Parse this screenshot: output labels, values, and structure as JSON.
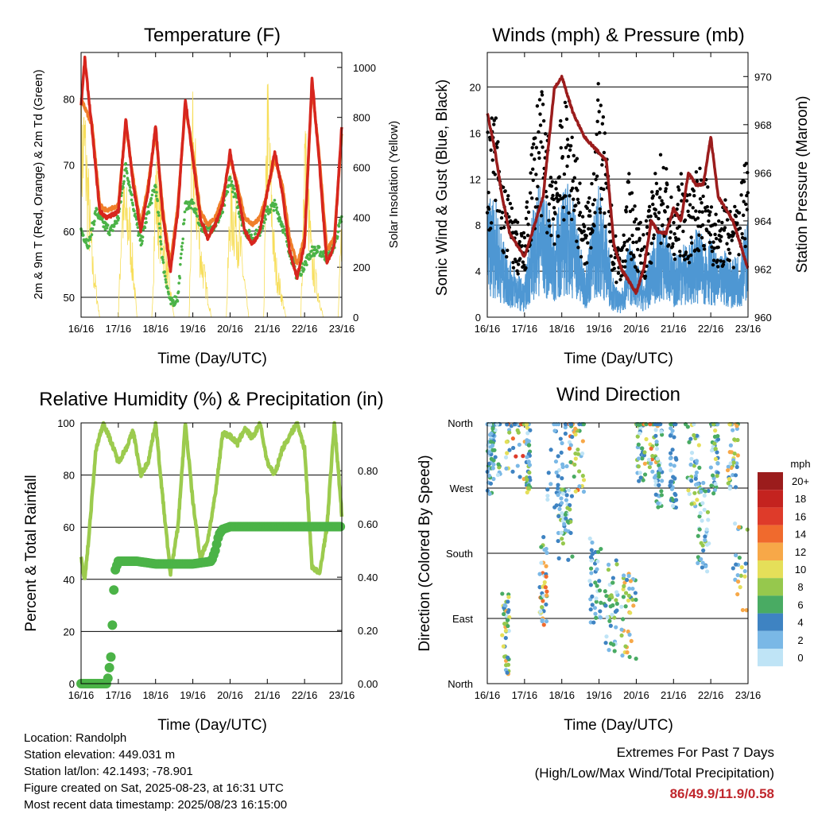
{
  "charts_text": {
    "temperature": {
      "title": "Temperature (F)",
      "ylabel_left": "2m & 9m T (Red, Orange) & 2m Td (Green)",
      "ylabel_right": "Solar Insolation (Yellow)",
      "xlabel": "Time (Day/UTC)"
    },
    "winds": {
      "title": "Winds (mph) & Pressure (mb)",
      "ylabel_left": "Sonic Wind & Gust (Blue, Black)",
      "ylabel_right": "Station Pressure (Maroon)",
      "xlabel": "Time (Day/UTC)"
    },
    "humidity": {
      "title": "Relative Humidity (%) & Precipitation (in)",
      "ylabel_left": "Percent & Total Rainfall",
      "xlabel": "Time (Day/UTC)"
    },
    "direction": {
      "title": "Wind Direction",
      "ylabel_left": "Direction (Colored By Speed)",
      "xlabel": "Time (Day/UTC)",
      "legend_title": "mph"
    }
  },
  "info": {
    "location": "Location: Randolph",
    "elevation": "Station elevation: 449.031 m",
    "latlon": "Station lat/lon: 42.1493; -78.901",
    "created": "Figure created on Sat, 2025-08-23, at 16:31 UTC",
    "recent": "Most recent data timestamp: 2025/08/23 16:15:00"
  },
  "extremes": {
    "line1": "Extremes For Past 7 Days",
    "line2": "(High/Low/Max Wind/Total Precipitation)",
    "values": "86/49.9/11.9/0.58"
  },
  "colors": {
    "temp_2m": "#d7261e",
    "temp_9m": "#f07f2a",
    "dewpoint": "#4bb347",
    "solar": "#f7de5a",
    "wind_sonic": "#4e97d3",
    "gust": "#000000",
    "pressure": "#9b1c1c",
    "rh": "#9ccb4e",
    "precip": "#4bb347"
  },
  "chart_data": [
    {
      "type": "line",
      "id": "temperature",
      "x_ticks": [
        "16/16",
        "17/16",
        "18/16",
        "19/16",
        "20/16",
        "21/16",
        "22/16",
        "23/16"
      ],
      "y_ticks_left": [
        50,
        60,
        70,
        80
      ],
      "y_ticks_right": [
        0,
        200,
        400,
        600,
        800,
        1000
      ],
      "ylim_left": [
        47,
        87
      ],
      "ylim_right": [
        0,
        1060
      ],
      "series": [
        {
          "name": "2m T",
          "x": [
            0,
            0.1,
            0.3,
            0.5,
            0.7,
            1.0,
            1.2,
            1.4,
            1.6,
            1.8,
            2.0,
            2.2,
            2.4,
            2.6,
            2.8,
            3.0,
            3.2,
            3.4,
            3.6,
            3.8,
            4.0,
            4.2,
            4.4,
            4.6,
            4.8,
            5.0,
            5.2,
            5.4,
            5.6,
            5.8,
            6.0,
            6.2,
            6.4,
            6.6,
            6.8,
            7.0
          ],
          "y": [
            79,
            86,
            75,
            63,
            62,
            63,
            77,
            67,
            60,
            66,
            76,
            62,
            54,
            63,
            80,
            71,
            62,
            59,
            61,
            64,
            72,
            66,
            60,
            58,
            60,
            66,
            72,
            66,
            57,
            53,
            58,
            83,
            70,
            55,
            58,
            76
          ]
        },
        {
          "name": "9m T",
          "x": [
            0,
            0.3,
            0.5,
            0.7,
            1.0,
            1.2,
            1.4,
            1.6,
            1.8,
            2.0,
            2.2,
            2.4,
            2.6,
            2.8,
            3.0,
            3.2,
            3.4,
            3.6,
            3.8,
            4.0,
            4.2,
            4.4,
            4.6,
            4.8,
            5.0,
            5.2,
            5.4,
            5.6,
            5.8,
            6.0,
            6.2,
            6.4,
            6.6,
            6.8,
            7.0
          ],
          "y": [
            80,
            76,
            64,
            63,
            64,
            76,
            68,
            61,
            67,
            75,
            63,
            55,
            64,
            79,
            72,
            63,
            61,
            62,
            65,
            71,
            67,
            62,
            61,
            62,
            66,
            71,
            67,
            59,
            55,
            59,
            82,
            71,
            57,
            59,
            75
          ]
        },
        {
          "name": "2m Td",
          "x": [
            0,
            0.2,
            0.4,
            0.6,
            0.8,
            1.0,
            1.2,
            1.4,
            1.6,
            1.8,
            2.0,
            2.2,
            2.4,
            2.6,
            2.8,
            3.0,
            3.2,
            3.4,
            3.6,
            3.8,
            4.0,
            4.2,
            4.4,
            4.6,
            4.8,
            5.0,
            5.2,
            5.4,
            5.6,
            5.8,
            6.0,
            6.2,
            6.4,
            6.6,
            6.8,
            7.0
          ],
          "y": [
            60,
            58,
            63,
            61,
            60,
            62,
            70,
            64,
            58,
            63,
            67,
            55,
            49,
            50,
            64,
            64,
            61,
            60,
            61,
            63,
            68,
            64,
            60,
            59,
            60,
            63,
            64,
            61,
            57,
            53,
            55,
            57,
            57,
            56,
            58,
            62
          ]
        },
        {
          "name": "Solar",
          "x": [
            0,
            0.1,
            0.3,
            0.5,
            1.0,
            1.1,
            1.3,
            1.5,
            1.9,
            2.0,
            2.2,
            2.5,
            2.9,
            3.0,
            3.2,
            3.5,
            3.9,
            4.0,
            4.2,
            4.5,
            4.9,
            5.0,
            5.2,
            5.5,
            5.9,
            6.0,
            6.2,
            6.5,
            6.9,
            7.0
          ],
          "y": [
            900,
            950,
            300,
            0,
            0,
            600,
            500,
            0,
            0,
            700,
            400,
            0,
            0,
            950,
            350,
            0,
            0,
            600,
            500,
            0,
            0,
            1060,
            300,
            0,
            0,
            900,
            300,
            0,
            0,
            500
          ]
        }
      ]
    },
    {
      "type": "scatter",
      "id": "winds",
      "x_ticks": [
        "16/16",
        "17/16",
        "18/16",
        "19/16",
        "20/16",
        "21/16",
        "22/16",
        "23/16"
      ],
      "y_ticks_left": [
        0,
        4,
        8,
        12,
        16,
        20
      ],
      "y_ticks_right": [
        960,
        962,
        964,
        966,
        968,
        970
      ],
      "ylim_left": [
        0,
        23
      ],
      "ylim_right": [
        960,
        971
      ],
      "series": [
        {
          "name": "Pressure",
          "x": [
            0,
            0.2,
            0.4,
            0.6,
            0.8,
            1.0,
            1.2,
            1.5,
            1.8,
            2.0,
            2.3,
            2.6,
            2.9,
            3.2,
            3.4,
            3.6,
            3.8,
            4.0,
            4.2,
            4.4,
            4.6,
            4.8,
            5.0,
            5.2,
            5.4,
            5.6,
            5.8,
            6.0,
            6.2,
            6.4,
            6.6,
            6.8,
            7.0
          ],
          "y": [
            968.5,
            967.0,
            965.0,
            963.5,
            963.0,
            962.5,
            963.5,
            965.0,
            969.5,
            970.0,
            968.5,
            967.5,
            967.0,
            966.5,
            963.0,
            962.0,
            961.5,
            961.0,
            962.0,
            964.0,
            963.5,
            963.5,
            964.5,
            964.0,
            966.0,
            965.5,
            965.5,
            967.5,
            965.0,
            964.5,
            964.0,
            963.0,
            962.0
          ]
        },
        {
          "name": "Gust",
          "x": [
            0,
            0.2,
            0.4,
            0.6,
            0.8,
            1.0,
            1.2,
            1.4,
            1.6,
            1.8,
            2.0,
            2.2,
            2.4,
            2.6,
            2.8,
            3.0,
            3.2,
            3.4,
            3.6,
            3.8,
            4.0,
            4.2,
            4.4,
            4.6,
            4.8,
            5.0,
            5.2,
            5.4,
            5.6,
            5.8,
            6.0,
            6.2,
            6.4,
            6.6,
            6.8,
            7.0
          ],
          "y": [
            16,
            18,
            12,
            10,
            8,
            7,
            15,
            20,
            16,
            13,
            17,
            19,
            14,
            8,
            13,
            20,
            14,
            7,
            6,
            12,
            9,
            7,
            10,
            14,
            13,
            9,
            12,
            10,
            13,
            12,
            11,
            8,
            10,
            9,
            11,
            15
          ]
        },
        {
          "name": "Sonic",
          "x": [
            0,
            0.2,
            0.4,
            0.6,
            0.8,
            1.0,
            1.2,
            1.4,
            1.6,
            1.8,
            2.0,
            2.2,
            2.4,
            2.6,
            2.8,
            3.0,
            3.2,
            3.4,
            3.6,
            3.8,
            4.0,
            4.2,
            4.4,
            4.6,
            4.8,
            5.0,
            5.2,
            5.4,
            5.6,
            5.8,
            6.0,
            6.2,
            6.4,
            6.6,
            6.8,
            7.0
          ],
          "y": [
            10,
            11,
            7,
            5,
            4,
            3,
            9,
            12,
            10,
            8,
            11,
            12,
            9,
            4,
            8,
            12,
            8,
            3,
            2,
            7,
            5,
            3,
            6,
            8,
            8,
            5,
            7,
            6,
            8,
            7,
            7,
            5,
            6,
            5,
            6,
            9
          ]
        }
      ]
    },
    {
      "type": "line",
      "id": "humidity",
      "x_ticks": [
        "16/16",
        "17/16",
        "18/16",
        "19/16",
        "20/16",
        "21/16",
        "22/16",
        "23/16"
      ],
      "y_ticks_left": [
        0,
        20,
        40,
        60,
        80,
        100
      ],
      "y_ticks_right": [
        "0.00",
        "0.20",
        "0.40",
        "0.60",
        "0.80"
      ],
      "ylim_left": [
        0,
        100
      ],
      "ylim_right": [
        0,
        0.98
      ],
      "series": [
        {
          "name": "RH",
          "x": [
            0,
            0.1,
            0.2,
            0.4,
            0.6,
            0.8,
            1.0,
            1.2,
            1.4,
            1.6,
            1.8,
            2.0,
            2.2,
            2.4,
            2.6,
            2.8,
            3.0,
            3.2,
            3.4,
            3.6,
            3.8,
            4.0,
            4.2,
            4.4,
            4.6,
            4.8,
            5.0,
            5.2,
            5.4,
            5.6,
            5.8,
            6.0,
            6.2,
            6.4,
            6.6,
            6.8,
            7.0
          ],
          "y": [
            48,
            40,
            55,
            90,
            100,
            93,
            85,
            90,
            97,
            80,
            85,
            100,
            70,
            42,
            60,
            100,
            70,
            48,
            55,
            72,
            96,
            95,
            92,
            98,
            94,
            100,
            85,
            80,
            90,
            95,
            100,
            90,
            45,
            42,
            60,
            100,
            65
          ]
        },
        {
          "name": "Precip",
          "x": [
            0,
            0.2,
            0.5,
            0.7,
            0.8,
            0.85,
            0.9,
            1.0,
            1.2,
            1.5,
            2.0,
            2.5,
            3.0,
            3.5,
            3.6,
            3.7,
            3.8,
            4.0,
            4.5,
            5.0,
            5.5,
            6.0,
            6.5,
            7.0
          ],
          "y": [
            0,
            0,
            0,
            0,
            0.1,
            0.25,
            0.42,
            0.46,
            0.46,
            0.46,
            0.45,
            0.45,
            0.45,
            0.46,
            0.5,
            0.56,
            0.58,
            0.59,
            0.59,
            0.59,
            0.59,
            0.59,
            0.59,
            0.59
          ]
        }
      ]
    },
    {
      "type": "scatter",
      "id": "direction",
      "x_ticks": [
        "16/16",
        "17/16",
        "18/16",
        "19/16",
        "20/16",
        "21/16",
        "22/16",
        "23/16"
      ],
      "y_ticks": [
        "North",
        "West",
        "South",
        "East",
        "North"
      ],
      "legend": [
        "20+",
        "18",
        "16",
        "14",
        "12",
        "10",
        "8",
        "6",
        "4",
        "2",
        "0"
      ],
      "legend_colors": [
        "#9b1c1c",
        "#c4231f",
        "#de3b2a",
        "#f06a2d",
        "#f7a848",
        "#e5df59",
        "#96c84d",
        "#49ab63",
        "#3e83c2",
        "#7ab8e6",
        "#bfe4f6"
      ]
    }
  ]
}
